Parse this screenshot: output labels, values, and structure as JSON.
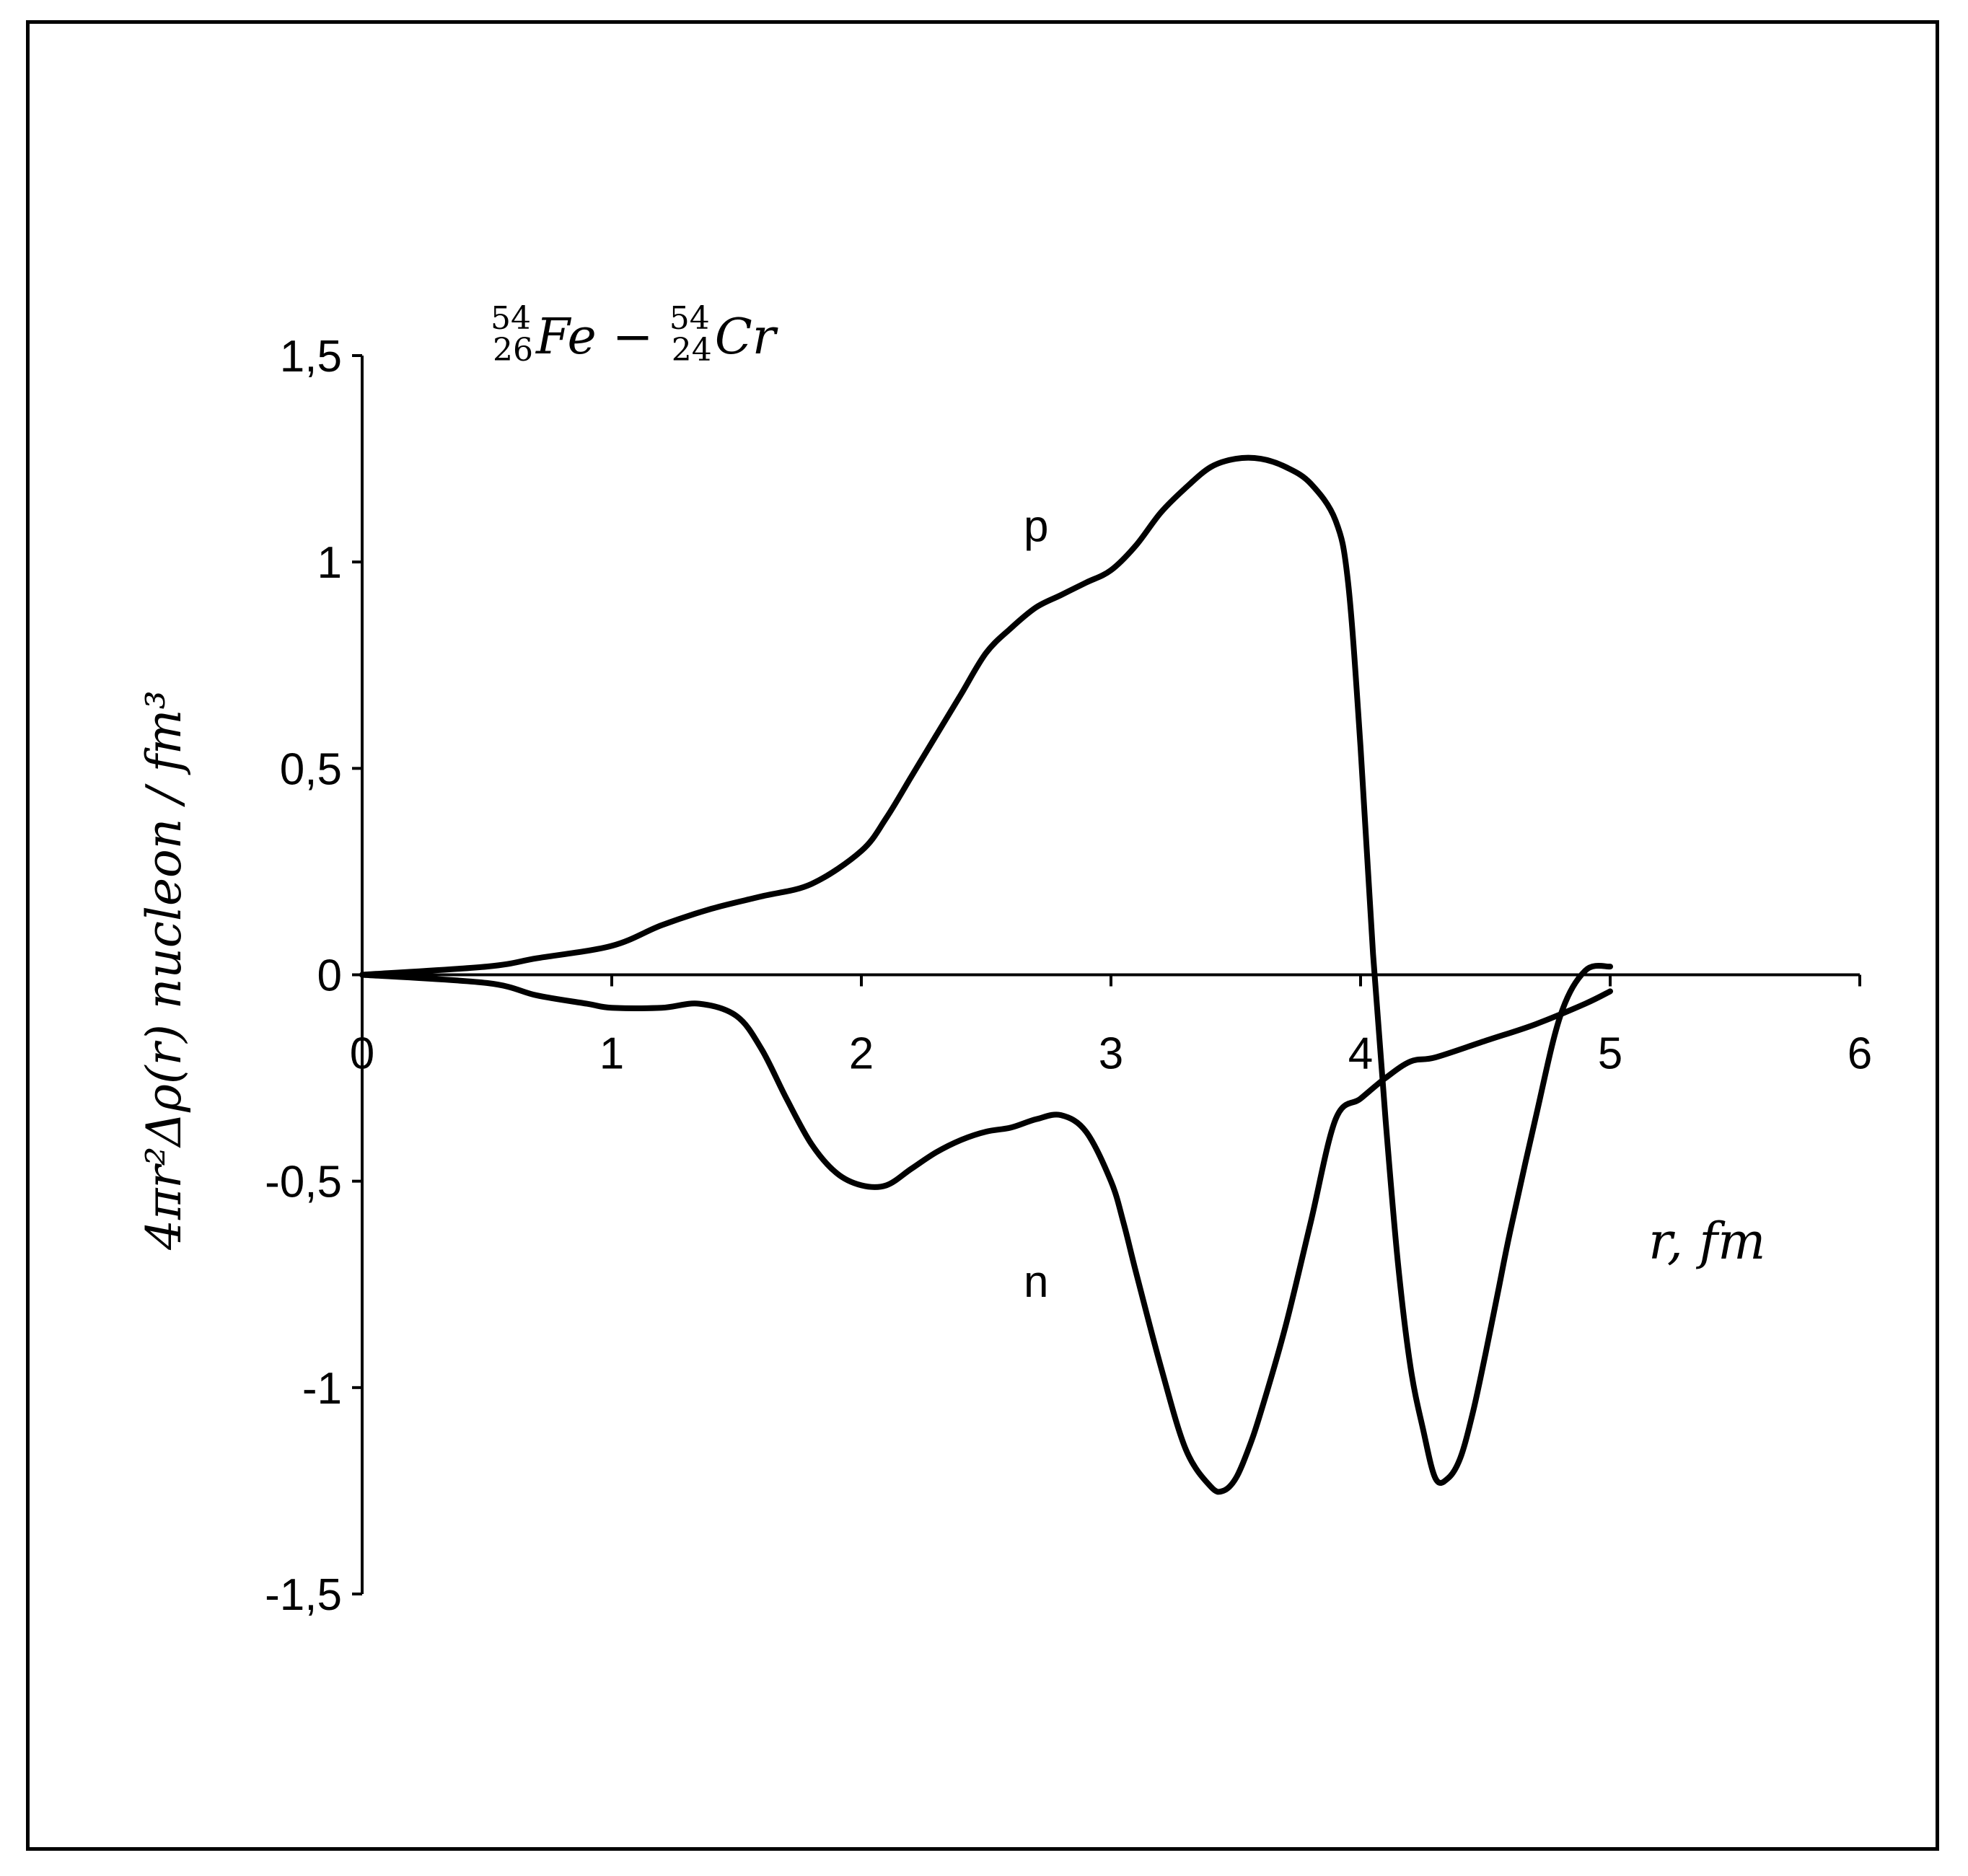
{
  "chart_data": {
    "type": "line",
    "title": "",
    "xlabel": "r, fm",
    "ylabel": "4πr²Δρ(r) nucleon / fm³",
    "annotation": {
      "superscript_1": "54",
      "subscript_1": "26",
      "element_1": "Fe",
      "separator": "−",
      "superscript_2": "54",
      "subscript_2": "24",
      "element_2": "Cr"
    },
    "xlim": [
      0,
      6
    ],
    "ylim": [
      -1.5,
      1.5
    ],
    "x_ticks": [
      0,
      1,
      2,
      3,
      4,
      5,
      6
    ],
    "x_tick_labels": [
      "0",
      "1",
      "2",
      "3",
      "4",
      "5",
      "6"
    ],
    "y_ticks": [
      1.5,
      1,
      0.5,
      0,
      -0.5,
      -1,
      -1.5
    ],
    "y_tick_labels": [
      "1,5",
      "1",
      "0,5",
      "0",
      "-0,5",
      "-1",
      "-1,5"
    ],
    "grid": false,
    "series": [
      {
        "name": "p",
        "x": [
          0,
          0.5,
          0.7,
          1.0,
          1.2,
          1.4,
          1.6,
          1.8,
          2.0,
          2.1,
          2.2,
          2.3,
          2.4,
          2.5,
          2.6,
          2.7,
          2.8,
          2.9,
          3.0,
          3.1,
          3.2,
          3.3,
          3.4,
          3.5,
          3.6,
          3.7,
          3.8,
          3.9,
          3.95,
          4.0,
          4.05,
          4.1,
          4.15,
          4.2,
          4.25,
          4.3,
          4.35,
          4.4,
          4.45,
          4.5,
          4.55,
          4.6,
          4.7,
          4.8,
          4.9,
          5.0
        ],
        "y": [
          0,
          0.02,
          0.04,
          0.07,
          0.12,
          0.16,
          0.19,
          0.22,
          0.3,
          0.38,
          0.48,
          0.58,
          0.68,
          0.78,
          0.84,
          0.89,
          0.92,
          0.95,
          0.98,
          1.04,
          1.12,
          1.18,
          1.23,
          1.25,
          1.25,
          1.23,
          1.19,
          1.1,
          0.95,
          0.55,
          0.05,
          -0.35,
          -0.7,
          -0.95,
          -1.1,
          -1.22,
          -1.22,
          -1.17,
          -1.06,
          -0.92,
          -0.77,
          -0.62,
          -0.35,
          -0.1,
          0.01,
          0.02
        ]
      },
      {
        "name": "n",
        "x": [
          0,
          0.5,
          0.7,
          0.9,
          1.0,
          1.2,
          1.35,
          1.5,
          1.6,
          1.7,
          1.8,
          1.9,
          2.0,
          2.1,
          2.2,
          2.3,
          2.4,
          2.5,
          2.6,
          2.7,
          2.8,
          2.9,
          3.0,
          3.05,
          3.1,
          3.2,
          3.3,
          3.4,
          3.45,
          3.5,
          3.55,
          3.6,
          3.7,
          3.8,
          3.9,
          4.0,
          4.1,
          4.2,
          4.3,
          4.5,
          4.7,
          4.9,
          5.0
        ],
        "y": [
          0,
          -0.02,
          -0.05,
          -0.07,
          -0.08,
          -0.08,
          -0.07,
          -0.1,
          -0.18,
          -0.3,
          -0.41,
          -0.48,
          -0.51,
          -0.51,
          -0.47,
          -0.43,
          -0.4,
          -0.38,
          -0.37,
          -0.35,
          -0.34,
          -0.38,
          -0.5,
          -0.6,
          -0.72,
          -0.95,
          -1.15,
          -1.24,
          -1.25,
          -1.22,
          -1.15,
          -1.06,
          -0.85,
          -0.6,
          -0.35,
          -0.3,
          -0.25,
          -0.21,
          -0.2,
          -0.16,
          -0.12,
          -0.07,
          -0.04
        ]
      }
    ],
    "series_labels": [
      {
        "text": "p",
        "x": 2.7,
        "y": 1.05
      },
      {
        "text": "n",
        "x": 2.7,
        "y": -0.78
      }
    ]
  }
}
